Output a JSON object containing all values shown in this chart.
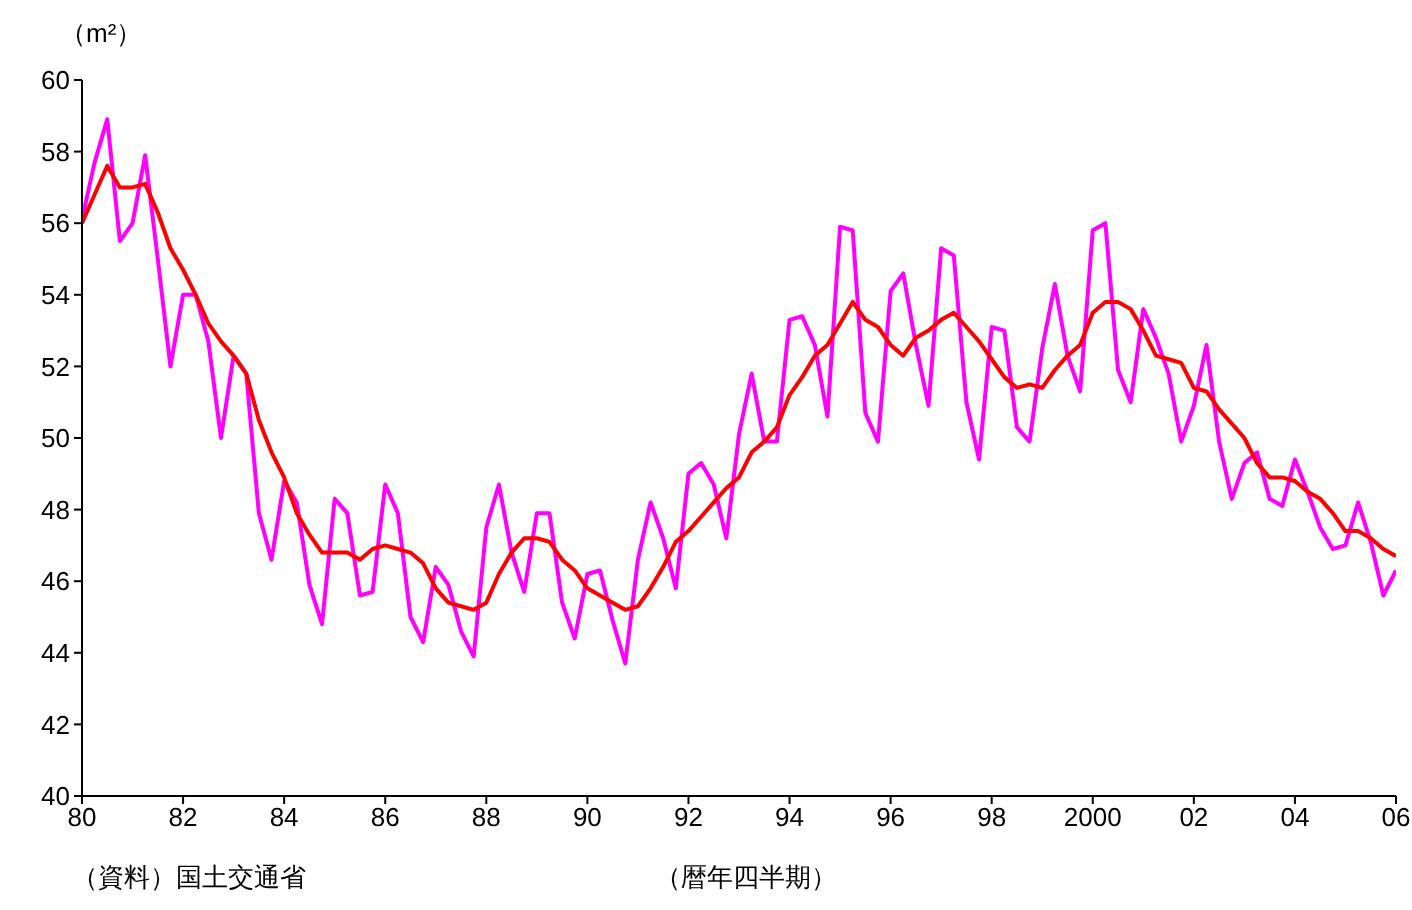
{
  "chart_data": {
    "type": "line",
    "ylabel": "（m²）",
    "xlabel": "（暦年四半期）",
    "annotations": [
      "（資料）国土交通省"
    ],
    "marker": "none",
    "x": [
      1980,
      1980.25,
      1980.5,
      1980.75,
      1981,
      1981.25,
      1981.5,
      1981.75,
      1982,
      1982.25,
      1982.5,
      1982.75,
      1983,
      1983.25,
      1983.5,
      1983.75,
      1984,
      1984.25,
      1984.5,
      1984.75,
      1985,
      1985.25,
      1985.5,
      1985.75,
      1986,
      1986.25,
      1986.5,
      1986.75,
      1987,
      1987.25,
      1987.5,
      1987.75,
      1988,
      1988.25,
      1988.5,
      1988.75,
      1989,
      1989.25,
      1989.5,
      1989.75,
      1990,
      1990.25,
      1990.5,
      1990.75,
      1991,
      1991.25,
      1991.5,
      1991.75,
      1992,
      1992.25,
      1992.5,
      1992.75,
      1993,
      1993.25,
      1993.5,
      1993.75,
      1994,
      1994.25,
      1994.5,
      1994.75,
      1995,
      1995.25,
      1995.5,
      1995.75,
      1996,
      1996.25,
      1996.5,
      1996.75,
      1997,
      1997.25,
      1997.5,
      1997.75,
      1998,
      1998.25,
      1998.5,
      1998.75,
      1999,
      1999.25,
      1999.5,
      1999.75,
      2000,
      2000.25,
      2000.5,
      2000.75,
      2001,
      2001.25,
      2001.5,
      2001.75,
      2002,
      2002.25,
      2002.5,
      2002.75,
      2003,
      2003.25,
      2003.5,
      2003.75,
      2004,
      2004.25,
      2004.5,
      2004.75,
      2005,
      2005.25,
      2005.5,
      2005.75,
      2006
    ],
    "series": [
      {
        "color": "#ff00ff",
        "values": [
          56.1,
          57.7,
          58.9,
          55.5,
          56.0,
          57.9,
          55.0,
          52.0,
          54.0,
          54.0,
          52.7,
          50.0,
          52.3,
          51.8,
          47.9,
          46.6,
          48.8,
          48.2,
          45.9,
          44.8,
          48.3,
          47.9,
          45.6,
          45.7,
          48.7,
          47.9,
          45.0,
          44.3,
          46.4,
          45.9,
          44.6,
          43.9,
          47.5,
          48.7,
          46.8,
          45.7,
          47.9,
          47.9,
          45.4,
          44.4,
          46.2,
          46.3,
          44.9,
          43.7,
          46.6,
          48.2,
          47.2,
          45.8,
          49.0,
          49.3,
          48.7,
          47.2,
          50.1,
          51.8,
          49.9,
          49.9,
          53.3,
          53.4,
          52.6,
          50.6,
          55.9,
          55.8,
          50.7,
          49.9,
          54.1,
          54.6,
          52.6,
          50.9,
          55.3,
          55.1,
          51.0,
          49.4,
          53.1,
          53.0,
          50.3,
          49.9,
          52.5,
          54.3,
          52.3,
          51.3,
          55.8,
          56.0,
          51.9,
          51.0,
          53.6,
          52.8,
          51.8,
          49.9,
          50.9,
          52.6,
          49.9,
          48.3,
          49.3,
          49.6,
          48.3,
          48.1,
          49.4,
          48.5,
          47.5,
          46.9,
          47.0,
          48.2,
          47.1,
          45.6,
          46.3
        ]
      },
      {
        "color": "#ff0000",
        "values": [
          56.0,
          56.8,
          57.6,
          57.0,
          57.0,
          57.1,
          56.3,
          55.3,
          54.7,
          54.0,
          53.2,
          52.7,
          52.3,
          51.8,
          50.5,
          49.6,
          48.9,
          47.9,
          47.3,
          46.8,
          46.8,
          46.8,
          46.6,
          46.9,
          47.0,
          46.9,
          46.8,
          46.5,
          45.8,
          45.4,
          45.3,
          45.2,
          45.4,
          46.2,
          46.8,
          47.2,
          47.2,
          47.1,
          46.6,
          46.3,
          45.8,
          45.6,
          45.4,
          45.2,
          45.3,
          45.8,
          46.4,
          47.1,
          47.4,
          47.8,
          48.2,
          48.6,
          48.9,
          49.6,
          49.9,
          50.3,
          51.2,
          51.7,
          52.3,
          52.6,
          53.2,
          53.8,
          53.3,
          53.1,
          52.6,
          52.3,
          52.8,
          53.0,
          53.3,
          53.5,
          53.1,
          52.7,
          52.2,
          51.7,
          51.4,
          51.5,
          51.4,
          51.9,
          52.3,
          52.6,
          53.5,
          53.8,
          53.8,
          53.6,
          53.0,
          52.3,
          52.2,
          52.1,
          51.4,
          51.3,
          50.8,
          50.4,
          50.0,
          49.3,
          48.9,
          48.9,
          48.8,
          48.5,
          48.3,
          47.9,
          47.4,
          47.4,
          47.2,
          46.9,
          46.7
        ]
      }
    ],
    "xlim": [
      1980,
      2006
    ],
    "xticks": [
      {
        "value": 1980,
        "label": "80"
      },
      {
        "value": 1982,
        "label": "82"
      },
      {
        "value": 1984,
        "label": "84"
      },
      {
        "value": 1986,
        "label": "86"
      },
      {
        "value": 1988,
        "label": "88"
      },
      {
        "value": 1990,
        "label": "90"
      },
      {
        "value": 1992,
        "label": "92"
      },
      {
        "value": 1994,
        "label": "94"
      },
      {
        "value": 1996,
        "label": "96"
      },
      {
        "value": 1998,
        "label": "98"
      },
      2000,
      {
        "value": 2002,
        "label": "02"
      },
      {
        "value": 2004,
        "label": "04"
      },
      {
        "value": 2006,
        "label": "06"
      }
    ],
    "ylim": [
      40,
      60
    ],
    "yticks": [
      40,
      42,
      44,
      46,
      48,
      50,
      52,
      54,
      56,
      58,
      60
    ]
  }
}
